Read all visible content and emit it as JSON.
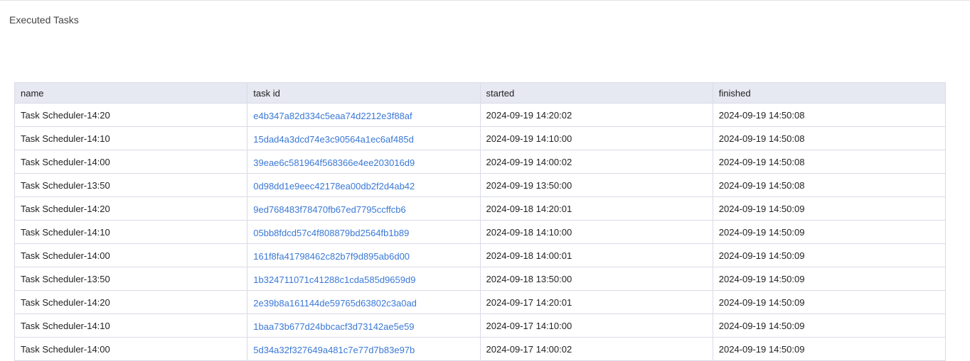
{
  "title": "Executed Tasks",
  "columns": [
    "name",
    "task id",
    "started",
    "finished"
  ],
  "rows": [
    {
      "name": "Task Scheduler-14:20",
      "task_id": "e4b347a82d334c5eaa74d2212e3f88af",
      "started": "2024-09-19 14:20:02",
      "finished": "2024-09-19 14:50:08"
    },
    {
      "name": "Task Scheduler-14:10",
      "task_id": "15dad4a3dcd74e3c90564a1ec6af485d",
      "started": "2024-09-19 14:10:00",
      "finished": "2024-09-19 14:50:08"
    },
    {
      "name": "Task Scheduler-14:00",
      "task_id": "39eae6c581964f568366e4ee203016d9",
      "started": "2024-09-19 14:00:02",
      "finished": "2024-09-19 14:50:08"
    },
    {
      "name": "Task Scheduler-13:50",
      "task_id": "0d98dd1e9eec42178ea00db2f2d4ab42",
      "started": "2024-09-19 13:50:00",
      "finished": "2024-09-19 14:50:08"
    },
    {
      "name": "Task Scheduler-14:20",
      "task_id": "9ed768483f78470fb67ed7795ccffcb6",
      "started": "2024-09-18 14:20:01",
      "finished": "2024-09-19 14:50:09"
    },
    {
      "name": "Task Scheduler-14:10",
      "task_id": "05bb8fdcd57c4f808879bd2564fb1b89",
      "started": "2024-09-18 14:10:00",
      "finished": "2024-09-19 14:50:09"
    },
    {
      "name": "Task Scheduler-14:00",
      "task_id": "161f8fa41798462c82b7f9d895ab6d00",
      "started": "2024-09-18 14:00:01",
      "finished": "2024-09-19 14:50:09"
    },
    {
      "name": "Task Scheduler-13:50",
      "task_id": "1b324711071c41288c1cda585d9659d9",
      "started": "2024-09-18 13:50:00",
      "finished": "2024-09-19 14:50:09"
    },
    {
      "name": "Task Scheduler-14:20",
      "task_id": "2e39b8a161144de59765d63802c3a0ad",
      "started": "2024-09-17 14:20:01",
      "finished": "2024-09-19 14:50:09"
    },
    {
      "name": "Task Scheduler-14:10",
      "task_id": "1baa73b677d24bbcacf3d73142ae5e59",
      "started": "2024-09-17 14:10:00",
      "finished": "2024-09-19 14:50:09"
    },
    {
      "name": "Task Scheduler-14:00",
      "task_id": "5d34a32f327649a481c7e77d7b83e97b",
      "started": "2024-09-17 14:00:02",
      "finished": "2024-09-19 14:50:09"
    }
  ]
}
